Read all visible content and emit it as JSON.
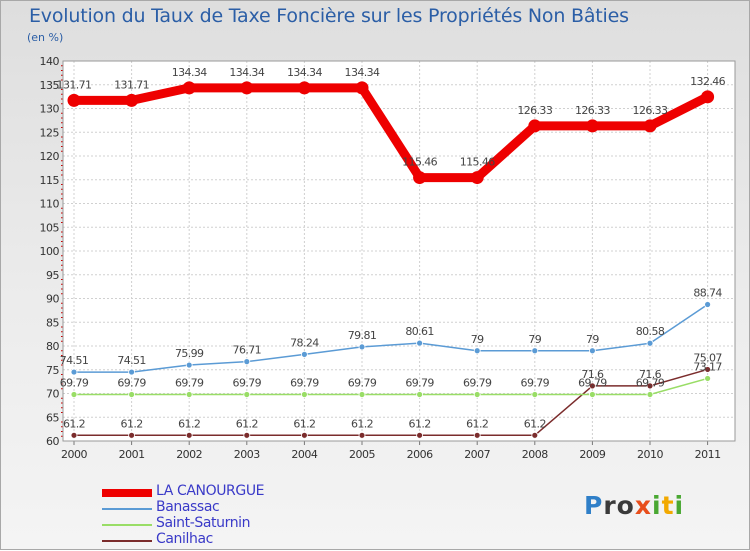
{
  "chart_data": {
    "type": "line",
    "title": "Evolution du Taux de Taxe Foncière sur les Propriétés Non Bâties",
    "subtitle": "(en %)",
    "x": [
      "2000",
      "2001",
      "2002",
      "2003",
      "2004",
      "2005",
      "2006",
      "2007",
      "2008",
      "2009",
      "2010",
      "2011"
    ],
    "ylim": [
      60,
      140
    ],
    "yticks": [
      60,
      65,
      70,
      75,
      80,
      85,
      90,
      95,
      100,
      105,
      110,
      115,
      120,
      125,
      130,
      135,
      140
    ],
    "grid": true,
    "series": [
      {
        "name": "LA CANOURGUE",
        "color": "#ee0000",
        "values": [
          131.71,
          131.71,
          134.34,
          134.34,
          134.34,
          134.34,
          115.46,
          115.46,
          126.33,
          126.33,
          126.33,
          132.46
        ],
        "labels": [
          "131.71",
          "131.71",
          "134.34",
          "134.34",
          "134.34",
          "134.34",
          "115.46",
          "115.46",
          "126.33",
          "126.33",
          "126.33",
          "132.46"
        ]
      },
      {
        "name": "Banassac",
        "color": "#5b9bd5",
        "values": [
          74.51,
          74.51,
          75.99,
          76.71,
          78.24,
          79.81,
          80.61,
          79,
          79,
          79,
          80.58,
          88.74
        ],
        "labels": [
          "74.51",
          "74.51",
          "75.99",
          "76.71",
          "78.24",
          "79.81",
          "80.61",
          "79",
          "79",
          "79",
          "80.58",
          "88.74"
        ]
      },
      {
        "name": "Saint-Saturnin",
        "color": "#99dd66",
        "values": [
          69.79,
          69.79,
          69.79,
          69.79,
          69.79,
          69.79,
          69.79,
          69.79,
          69.79,
          69.79,
          69.79,
          73.17
        ],
        "labels": [
          "69.79",
          "69.79",
          "69.79",
          "69.79",
          "69.79",
          "69.79",
          "69.79",
          "69.79",
          "69.79",
          "69.79",
          "69.79",
          "73.17"
        ]
      },
      {
        "name": "Canilhac",
        "color": "#7b2c2c",
        "values": [
          61.2,
          61.2,
          61.2,
          61.2,
          61.2,
          61.2,
          61.2,
          61.2,
          61.2,
          71.6,
          71.6,
          75.07
        ],
        "labels": [
          "61.2",
          "61.2",
          "61.2",
          "61.2",
          "61.2",
          "61.2",
          "61.2",
          "61.2",
          "61.2",
          "71.6",
          "71.6",
          "75.07"
        ]
      }
    ]
  },
  "logo": {
    "letters": [
      {
        "ch": "P",
        "color": "#2f7fc8"
      },
      {
        "ch": "r",
        "color": "#3a3a3a"
      },
      {
        "ch": "o",
        "color": "#3a3a3a"
      },
      {
        "ch": "x",
        "color": "#e84e1b"
      },
      {
        "ch": "i",
        "color": "#4aa832"
      },
      {
        "ch": "t",
        "color": "#f2a900"
      },
      {
        "ch": "i",
        "color": "#4aa832"
      }
    ]
  }
}
